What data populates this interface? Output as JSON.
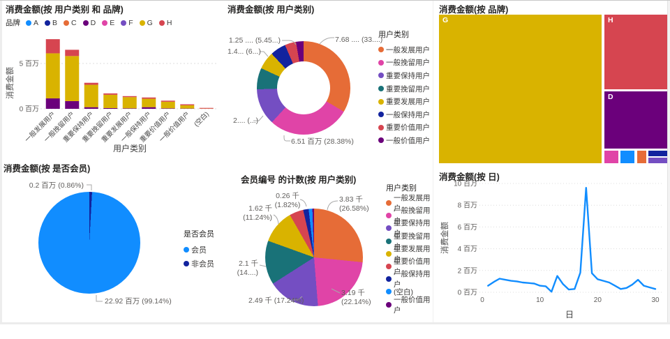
{
  "chart_data": [
    {
      "id": "bar-brand",
      "type": "bar",
      "stacked": true,
      "title": "消费金额(按 用户类别 和 品牌)",
      "legend_title": "品牌",
      "legend": [
        {
          "label": "A",
          "color": "#118DFF"
        },
        {
          "label": "B",
          "color": "#12239E"
        },
        {
          "label": "C",
          "color": "#E66C37"
        },
        {
          "label": "D",
          "color": "#6B007B"
        },
        {
          "label": "E",
          "color": "#E044A7"
        },
        {
          "label": "F",
          "color": "#744EC2"
        },
        {
          "label": "G",
          "color": "#D9B300"
        },
        {
          "label": "H",
          "color": "#D64550"
        }
      ],
      "xlabel": "用户类别",
      "ylabel": "消费金额",
      "ylim": [
        0,
        8
      ],
      "unit": "百万",
      "y_ticks": [
        {
          "value": 0,
          "label": "0 百万"
        },
        {
          "value": 5,
          "label": "5 百万"
        }
      ],
      "categories": [
        "一般发展用户",
        "一般挽留用户",
        "重要保持用户",
        "重要挽留用户",
        "重要发展用户",
        "一般保持用户",
        "重要价值用户",
        "一般价值用户",
        "(空白)"
      ],
      "series": [
        {
          "name": "D",
          "color": "#6B007B",
          "values": [
            1.15,
            0.85,
            0.18,
            0.08,
            0.05,
            0.18,
            0.05,
            0.03,
            0
          ]
        },
        {
          "name": "G",
          "color": "#D9B300",
          "values": [
            4.97,
            4.97,
            2.47,
            1.47,
            1.24,
            0.93,
            0.73,
            0.36,
            0.02
          ]
        },
        {
          "name": "H",
          "color": "#D64550",
          "values": [
            1.56,
            0.69,
            0.22,
            0.15,
            0.11,
            0.14,
            0.12,
            0.11,
            0.08
          ]
        }
      ]
    },
    {
      "id": "donut-category",
      "type": "pie",
      "donut": true,
      "title": "消费金额(按 用户类别)",
      "legend_title": "用户类别",
      "slices": [
        {
          "name": "一般发展用户",
          "color": "#E66C37",
          "value_mil": 7.68,
          "pct": 33.48,
          "label": "7.68 .... (33....)"
        },
        {
          "name": "一般挽留用户",
          "color": "#E044A7",
          "value_mil": 6.51,
          "pct": 28.38,
          "label": "6.51 百万 (28.38%)"
        },
        {
          "name": "重要保持用户",
          "color": "#744EC2",
          "value_mil": 2.87,
          "pct": 12.65,
          "label": "2.... (...)"
        },
        {
          "name": "重要挽留用户",
          "color": "#197278",
          "value_mil": 1.7,
          "pct": 7.41,
          "label": ""
        },
        {
          "name": "重要发展用户",
          "color": "#D9B300",
          "value_mil": 1.4,
          "pct": 6.1,
          "label": "1.4... (6...)"
        },
        {
          "name": "一般保持用户",
          "color": "#12239E",
          "value_mil": 1.25,
          "pct": 5.45,
          "label": "1.25 .... (5.45...)"
        },
        {
          "name": "重要价值用户",
          "color": "#D64550",
          "value_mil": 0.9,
          "pct": 3.92,
          "label": ""
        },
        {
          "name": "一般价值用户",
          "color": "#6B007B",
          "value_mil": 0.5,
          "pct": 2.61,
          "label": ""
        }
      ],
      "legend": [
        {
          "label": "一般发展用户",
          "color": "#E66C37"
        },
        {
          "label": "一般挽留用户",
          "color": "#E044A7"
        },
        {
          "label": "重要保持用户",
          "color": "#744EC2"
        },
        {
          "label": "重要挽留用户",
          "color": "#197278"
        },
        {
          "label": "重要发展用户",
          "color": "#D9B300"
        },
        {
          "label": "一般保持用户",
          "color": "#12239E"
        },
        {
          "label": "重要价值用户",
          "color": "#D64550"
        },
        {
          "label": "一般价值用户",
          "color": "#6B007B"
        }
      ]
    },
    {
      "id": "treemap-brand",
      "type": "treemap",
      "title": "消费金额(按 品牌)",
      "blocks": [
        {
          "name": "G",
          "color": "#D9B300",
          "label": "G"
        },
        {
          "name": "H",
          "color": "#D64550",
          "label": "H"
        },
        {
          "name": "D",
          "color": "#6B007B",
          "label": "D"
        },
        {
          "name": "E",
          "color": "#E044A7",
          "label": ""
        },
        {
          "name": "A",
          "color": "#118DFF",
          "label": ""
        },
        {
          "name": "C",
          "color": "#E66C37",
          "label": ""
        },
        {
          "name": "B",
          "color": "#12239E",
          "label": ""
        },
        {
          "name": "F",
          "color": "#744EC2",
          "label": ""
        }
      ]
    },
    {
      "id": "pie-member",
      "type": "pie",
      "title": "消费金额(按 是否会员)",
      "legend_title": "是否会员",
      "slices": [
        {
          "name": "非会员",
          "color": "#12239E",
          "pct": 0.86,
          "label": "0.2 百万 (0.86%)"
        },
        {
          "name": "会员",
          "color": "#118DFF",
          "pct": 99.14,
          "label": "22.92 百万 (99.14%)"
        }
      ],
      "legend": [
        {
          "label": "会员",
          "color": "#118DFF"
        },
        {
          "label": "非会员",
          "color": "#12239E"
        }
      ]
    },
    {
      "id": "pie-count",
      "type": "pie",
      "title": "会员编号 的计数(按 用户类别)",
      "legend_title": "用户类别",
      "slices": [
        {
          "name": "一般发展用户",
          "color": "#E66C37",
          "pct": 26.58,
          "label1": "3.83 千",
          "label2": "(26.58%)"
        },
        {
          "name": "一般挽留用户",
          "color": "#E044A7",
          "pct": 22.14,
          "label1": "3.19 千",
          "label2": "(22.14%)"
        },
        {
          "name": "重要保持用户",
          "color": "#744EC2",
          "pct": 17.24,
          "label1": "2.49 千 (17.24%)",
          "label2": ""
        },
        {
          "name": "重要挽留用户",
          "color": "#197278",
          "pct": 14.55,
          "label1": "2.1 千",
          "label2": "(14....)"
        },
        {
          "name": "重要发展用户",
          "color": "#D9B300",
          "pct": 11.24,
          "label1": "1.62 千",
          "label2": "(11.24%)"
        },
        {
          "name": "重要价值用户",
          "color": "#D64550",
          "pct": 4.65,
          "label1": "",
          "label2": ""
        },
        {
          "name": "一般保持用户",
          "color": "#12239E",
          "pct": 1.82,
          "label1": "0.26 千",
          "label2": "(1.82%)"
        },
        {
          "name": "(空白)",
          "color": "#118DFF",
          "pct": 1.23,
          "label1": "",
          "label2": ""
        },
        {
          "name": "一般价值用户",
          "color": "#6B007B",
          "pct": 0.55,
          "label1": "",
          "label2": ""
        }
      ],
      "legend": [
        {
          "label": "一般发展用户",
          "color": "#E66C37"
        },
        {
          "label": "一般挽留用户",
          "color": "#E044A7"
        },
        {
          "label": "重要保持用户",
          "color": "#744EC2"
        },
        {
          "label": "重要挽留用户",
          "color": "#197278"
        },
        {
          "label": "重要发展用户",
          "color": "#D9B300"
        },
        {
          "label": "重要价值用户",
          "color": "#D64550"
        },
        {
          "label": "一般保持用户",
          "color": "#12239E"
        },
        {
          "label": "(空白)",
          "color": "#118DFF"
        },
        {
          "label": "一般价值用户",
          "color": "#6B007B"
        }
      ]
    },
    {
      "id": "line-day",
      "type": "line",
      "title": "消费金额(按 日)",
      "xlabel": "日",
      "ylabel": "消费金额",
      "line_color": "#118DFF",
      "ylim": [
        0,
        10
      ],
      "unit": "百万",
      "y_ticks": [
        {
          "value": 0,
          "label": "0 百万"
        },
        {
          "value": 2,
          "label": "2 百万"
        },
        {
          "value": 4,
          "label": "4 百万"
        },
        {
          "value": 6,
          "label": "6 百万"
        },
        {
          "value": 8,
          "label": "8 百万"
        },
        {
          "value": 10,
          "label": "10 百万"
        }
      ],
      "x_ticks": [
        {
          "value": 0,
          "label": "0"
        },
        {
          "value": 10,
          "label": "10"
        },
        {
          "value": 20,
          "label": "20"
        },
        {
          "value": 30,
          "label": "30"
        }
      ],
      "x": [
        1,
        2,
        3,
        4,
        5,
        6,
        7,
        8,
        9,
        10,
        11,
        12,
        13,
        14,
        15,
        16,
        17,
        18,
        19,
        20,
        21,
        22,
        23,
        24,
        25,
        26,
        27,
        28,
        29,
        30
      ],
      "y": [
        0.6,
        0.95,
        1.25,
        1.15,
        1.05,
        1.0,
        0.9,
        0.85,
        0.8,
        0.6,
        0.55,
        0.05,
        1.5,
        0.75,
        0.25,
        0.3,
        1.8,
        9.6,
        1.75,
        1.2,
        1.05,
        0.9,
        0.6,
        0.3,
        0.4,
        0.7,
        1.15,
        0.6,
        0.45,
        0.3
      ]
    }
  ]
}
